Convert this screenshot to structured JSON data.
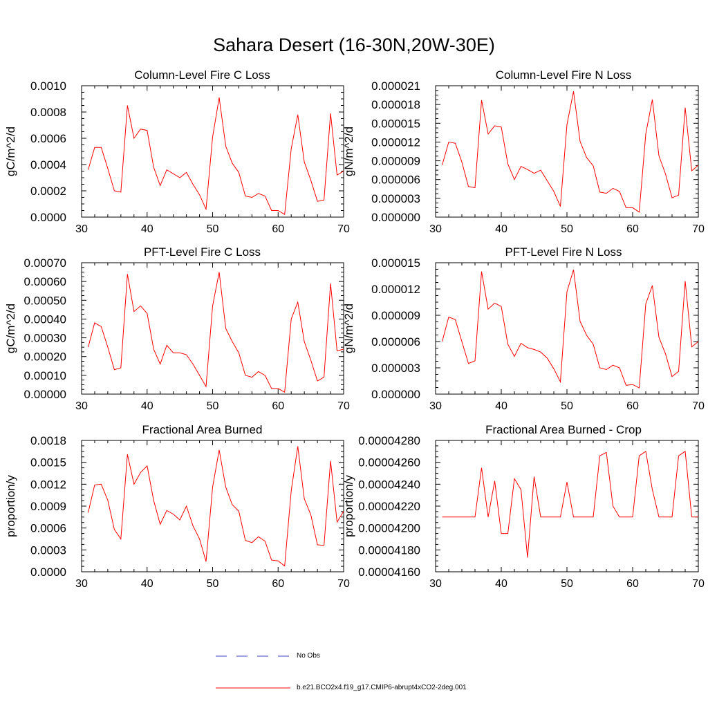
{
  "figure": {
    "title": "Sahara Desert (16-30N,20W-30E)"
  },
  "legend": {
    "entries": [
      {
        "label": "No Obs",
        "color": "#4040c0",
        "style": "dashed"
      },
      {
        "label": "b.e21.BCO2x4.f19_g17.CMIP6-abrupt4xCO2-2deg.001",
        "color": "#ff0000",
        "style": "solid"
      }
    ]
  },
  "chart_data": [
    {
      "type": "line",
      "title": "Column-Level Fire C Loss",
      "ylabel": "gC/m^2/d",
      "xlim": [
        30,
        70
      ],
      "ylim": [
        0,
        0.001
      ],
      "x_ticks": [
        "30",
        "40",
        "50",
        "60",
        "70"
      ],
      "y_ticks": [
        "0.0000",
        "0.0002",
        "0.0004",
        "0.0006",
        "0.0008",
        "0.0010"
      ],
      "x": [
        31,
        32,
        33,
        34,
        35,
        36,
        37,
        38,
        39,
        40,
        41,
        42,
        43,
        44,
        45,
        46,
        47,
        48,
        49,
        50,
        51,
        52,
        53,
        54,
        55,
        56,
        57,
        58,
        59,
        60,
        61,
        62,
        63,
        64,
        65,
        66,
        67,
        68,
        69,
        70
      ],
      "series": [
        {
          "name": "b.e21.BCO2x4.f19_g17.CMIP6-abrupt4xCO2-2deg.001",
          "color": "#ff0000",
          "values": [
            0.00036,
            0.00053,
            0.00053,
            0.00037,
            0.0002,
            0.00019,
            0.00085,
            0.0006,
            0.00067,
            0.00066,
            0.00038,
            0.00024,
            0.00036,
            0.00033,
            0.0003,
            0.00034,
            0.00025,
            0.00017,
            6e-05,
            0.00061,
            0.00091,
            0.00054,
            0.00041,
            0.00034,
            0.00016,
            0.00015,
            0.00018,
            0.00016,
            5e-05,
            5e-05,
            2e-05,
            0.00052,
            0.00078,
            0.00042,
            0.00028,
            0.00012,
            0.00013,
            0.00079,
            0.00032,
            0.00035
          ]
        }
      ]
    },
    {
      "type": "line",
      "title": "Column-Level Fire N Loss",
      "ylabel": "gN/m^2/d",
      "xlim": [
        30,
        70
      ],
      "ylim": [
        0,
        2.1e-05
      ],
      "x_ticks": [
        "30",
        "40",
        "50",
        "60",
        "70"
      ],
      "y_ticks": [
        "0.000000",
        "0.000003",
        "0.000006",
        "0.000009",
        "0.000012",
        "0.000015",
        "0.000018",
        "0.000021"
      ],
      "x": [
        31,
        32,
        33,
        34,
        35,
        36,
        37,
        38,
        39,
        40,
        41,
        42,
        43,
        44,
        45,
        46,
        47,
        48,
        49,
        50,
        51,
        52,
        53,
        54,
        55,
        56,
        57,
        58,
        59,
        60,
        61,
        62,
        63,
        64,
        65,
        66,
        67,
        68,
        69,
        70
      ],
      "series": [
        {
          "name": "b.e21.BCO2x4.f19_g17.CMIP6-abrupt4xCO2-2deg.001",
          "color": "#ff0000",
          "values": [
            8.3e-06,
            1.2e-05,
            1.18e-05,
            8.8e-06,
            4.9e-06,
            4.7e-06,
            1.87e-05,
            1.33e-05,
            1.46e-05,
            1.44e-05,
            8.5e-06,
            6e-06,
            8.1e-06,
            7.6e-06,
            7e-06,
            7.5e-06,
            5.8e-06,
            4.1e-06,
            1.7e-06,
            1.48e-05,
            2.01e-05,
            1.21e-05,
            9.5e-06,
            8.2e-06,
            4e-06,
            3.8e-06,
            4.6e-06,
            4.1e-06,
            1.5e-06,
            1.5e-06,
            8e-07,
            1.33e-05,
            1.88e-05,
            9.8e-06,
            6.9e-06,
            3.1e-06,
            3.5e-06,
            1.75e-05,
            7.4e-06,
            8.3e-06
          ]
        }
      ]
    },
    {
      "type": "line",
      "title": "PFT-Level Fire C Loss",
      "ylabel": "gC/m^2/d",
      "xlim": [
        30,
        70
      ],
      "ylim": [
        0,
        0.0007
      ],
      "x_ticks": [
        "30",
        "40",
        "50",
        "60",
        "70"
      ],
      "y_ticks": [
        "0.00000",
        "0.00010",
        "0.00020",
        "0.00030",
        "0.00040",
        "0.00050",
        "0.00060",
        "0.00070"
      ],
      "x": [
        31,
        32,
        33,
        34,
        35,
        36,
        37,
        38,
        39,
        40,
        41,
        42,
        43,
        44,
        45,
        46,
        47,
        48,
        49,
        50,
        51,
        52,
        53,
        54,
        55,
        56,
        57,
        58,
        59,
        60,
        61,
        62,
        63,
        64,
        65,
        66,
        67,
        68,
        69,
        70
      ],
      "series": [
        {
          "name": "b.e21.BCO2x4.f19_g17.CMIP6-abrupt4xCO2-2deg.001",
          "color": "#ff0000",
          "values": [
            0.00025,
            0.00038,
            0.00036,
            0.00025,
            0.00013,
            0.00014,
            0.00064,
            0.00044,
            0.00047,
            0.00043,
            0.00024,
            0.00016,
            0.00026,
            0.00022,
            0.00022,
            0.00021,
            0.00016,
            0.0001,
            4e-05,
            0.00047,
            0.00065,
            0.00035,
            0.00028,
            0.00022,
            0.0001,
            9e-05,
            0.00012,
            0.0001,
            3e-05,
            3e-05,
            1e-05,
            0.0004,
            0.00049,
            0.00028,
            0.00018,
            7e-05,
            9e-05,
            0.00059,
            0.00023,
            0.00024
          ]
        }
      ]
    },
    {
      "type": "line",
      "title": "PFT-Level Fire N Loss",
      "ylabel": "gN/m^2/d",
      "xlim": [
        30,
        70
      ],
      "ylim": [
        0,
        1.5e-05
      ],
      "x_ticks": [
        "30",
        "40",
        "50",
        "60",
        "70"
      ],
      "y_ticks": [
        "0.000000",
        "0.000003",
        "0.000006",
        "0.000009",
        "0.000012",
        "0.000015"
      ],
      "x": [
        31,
        32,
        33,
        34,
        35,
        36,
        37,
        38,
        39,
        40,
        41,
        42,
        43,
        44,
        45,
        46,
        47,
        48,
        49,
        50,
        51,
        52,
        53,
        54,
        55,
        56,
        57,
        58,
        59,
        60,
        61,
        62,
        63,
        64,
        65,
        66,
        67,
        68,
        69,
        70
      ],
      "series": [
        {
          "name": "b.e21.BCO2x4.f19_g17.CMIP6-abrupt4xCO2-2deg.001",
          "color": "#ff0000",
          "values": [
            6e-06,
            8.8e-06,
            8.5e-06,
            6e-06,
            3.5e-06,
            3.8e-06,
            1.4e-05,
            9.7e-06,
            1.04e-05,
            1e-05,
            5.7e-06,
            4.3e-06,
            5.8e-06,
            5.3e-06,
            5.1e-06,
            4.8e-06,
            4.1e-06,
            2.9e-06,
            1.4e-06,
            1.17e-05,
            1.42e-05,
            8.3e-06,
            6.7e-06,
            5.7e-06,
            3e-06,
            2.8e-06,
            3.3e-06,
            3e-06,
            1e-06,
            1.1e-06,
            7e-07,
            1.03e-05,
            1.24e-05,
            6.5e-06,
            4.6e-06,
            2e-06,
            2.6e-06,
            1.29e-05,
            5.4e-06,
            6e-06
          ]
        }
      ]
    },
    {
      "type": "line",
      "title": "Fractional Area Burned",
      "ylabel": "proportion/y",
      "xlim": [
        30,
        70
      ],
      "ylim": [
        0,
        0.0018
      ],
      "x_ticks": [
        "30",
        "40",
        "50",
        "60",
        "70"
      ],
      "y_ticks": [
        "0.0000",
        "0.0003",
        "0.0006",
        "0.0009",
        "0.0012",
        "0.0015",
        "0.0018"
      ],
      "x": [
        31,
        32,
        33,
        34,
        35,
        36,
        37,
        38,
        39,
        40,
        41,
        42,
        43,
        44,
        45,
        46,
        47,
        48,
        49,
        50,
        51,
        52,
        53,
        54,
        55,
        56,
        57,
        58,
        59,
        60,
        61,
        62,
        63,
        64,
        65,
        66,
        67,
        68,
        69,
        70
      ],
      "series": [
        {
          "name": "b.e21.BCO2x4.f19_g17.CMIP6-abrupt4xCO2-2deg.001",
          "color": "#ff0000",
          "values": [
            0.00081,
            0.00119,
            0.0012,
            0.00098,
            0.00058,
            0.00045,
            0.00161,
            0.0012,
            0.00136,
            0.00145,
            0.00098,
            0.00065,
            0.00084,
            0.00079,
            0.00071,
            0.0009,
            0.00063,
            0.00045,
            0.00014,
            0.00116,
            0.00167,
            0.00116,
            0.00092,
            0.00083,
            0.00043,
            0.0004,
            0.00048,
            0.00042,
            0.00016,
            0.00015,
            8e-05,
            0.00111,
            0.00172,
            0.001,
            0.00078,
            0.00037,
            0.00036,
            0.00152,
            0.00068,
            0.00083
          ]
        }
      ]
    },
    {
      "type": "line",
      "title": "Fractional Area Burned - Crop",
      "ylabel": "proportion/y",
      "xlim": [
        30,
        70
      ],
      "ylim": [
        4.16e-05,
        4.28e-05
      ],
      "x_ticks": [
        "30",
        "40",
        "50",
        "60",
        "70"
      ],
      "y_ticks": [
        "0.00004160",
        "0.00004180",
        "0.00004200",
        "0.00004220",
        "0.00004240",
        "0.00004260",
        "0.00004280"
      ],
      "x": [
        31,
        32,
        33,
        34,
        35,
        36,
        37,
        38,
        39,
        40,
        41,
        42,
        43,
        44,
        45,
        46,
        47,
        48,
        49,
        50,
        51,
        52,
        53,
        54,
        55,
        56,
        57,
        58,
        59,
        60,
        61,
        62,
        63,
        64,
        65,
        66,
        67,
        68,
        69,
        70
      ],
      "series": [
        {
          "name": "b.e21.BCO2x4.f19_g17.CMIP6-abrupt4xCO2-2deg.001",
          "color": "#ff0000",
          "values": [
            4.21e-05,
            4.21e-05,
            4.21e-05,
            4.21e-05,
            4.21e-05,
            4.21e-05,
            4.255e-05,
            4.21e-05,
            4.243e-05,
            4.195e-05,
            4.195e-05,
            4.245e-05,
            4.235e-05,
            4.173e-05,
            4.247e-05,
            4.21e-05,
            4.21e-05,
            4.21e-05,
            4.21e-05,
            4.242e-05,
            4.21e-05,
            4.21e-05,
            4.21e-05,
            4.21e-05,
            4.266e-05,
            4.269e-05,
            4.22e-05,
            4.21e-05,
            4.21e-05,
            4.21e-05,
            4.266e-05,
            4.27e-05,
            4.235e-05,
            4.21e-05,
            4.21e-05,
            4.21e-05,
            4.266e-05,
            4.27e-05,
            4.21e-05,
            4.21e-05
          ]
        }
      ]
    }
  ]
}
